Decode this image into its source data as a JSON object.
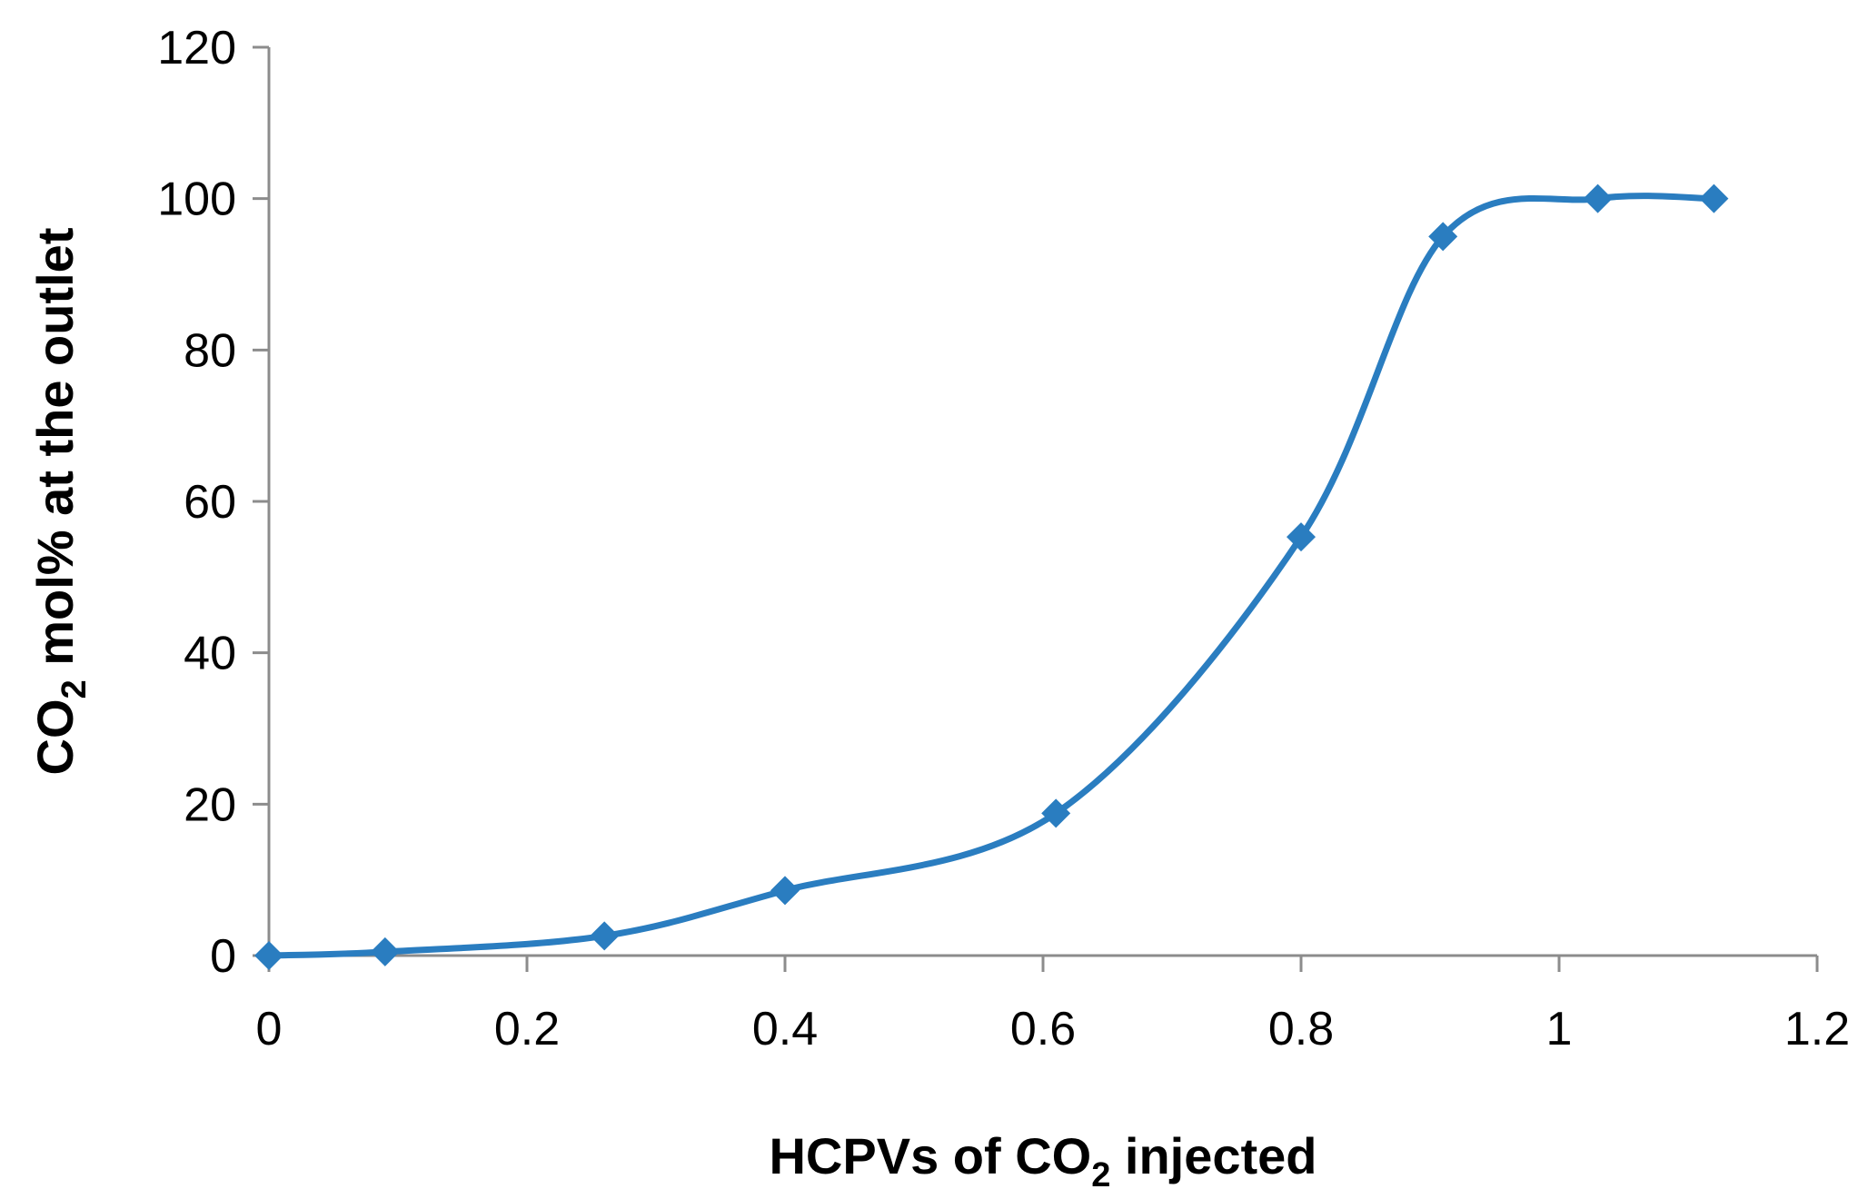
{
  "chart_data": {
    "type": "line",
    "title": "",
    "xlabel": {
      "prefix": "HCPVs of CO",
      "subscript": "2",
      "suffix": " injected"
    },
    "ylabel": {
      "prefix": "CO",
      "subscript": "2",
      "suffix": " mol% at the outlet"
    },
    "xlim": [
      0,
      1.2
    ],
    "ylim": [
      0,
      120
    ],
    "x_ticks": [
      0,
      0.2,
      0.4,
      0.6,
      0.8,
      1,
      1.2
    ],
    "x_tick_labels": [
      "0",
      "0.2",
      "0.4",
      "0.6",
      "0.8",
      "1",
      "1.2"
    ],
    "y_ticks": [
      0,
      20,
      40,
      60,
      80,
      100,
      120
    ],
    "y_tick_labels": [
      "0",
      "20",
      "40",
      "60",
      "80",
      "100",
      "120"
    ],
    "grid": false,
    "legend": "none",
    "series": [
      {
        "name": "CO2 mol%",
        "color": "#2a7dc0",
        "marker": "diamond",
        "smooth": true,
        "x": [
          0,
          0.09,
          0.26,
          0.4,
          0.61,
          0.8,
          0.91,
          1.03,
          1.12
        ],
        "y": [
          0,
          0.5,
          2.6,
          8.6,
          18.8,
          55.3,
          95,
          100,
          100
        ]
      }
    ]
  }
}
